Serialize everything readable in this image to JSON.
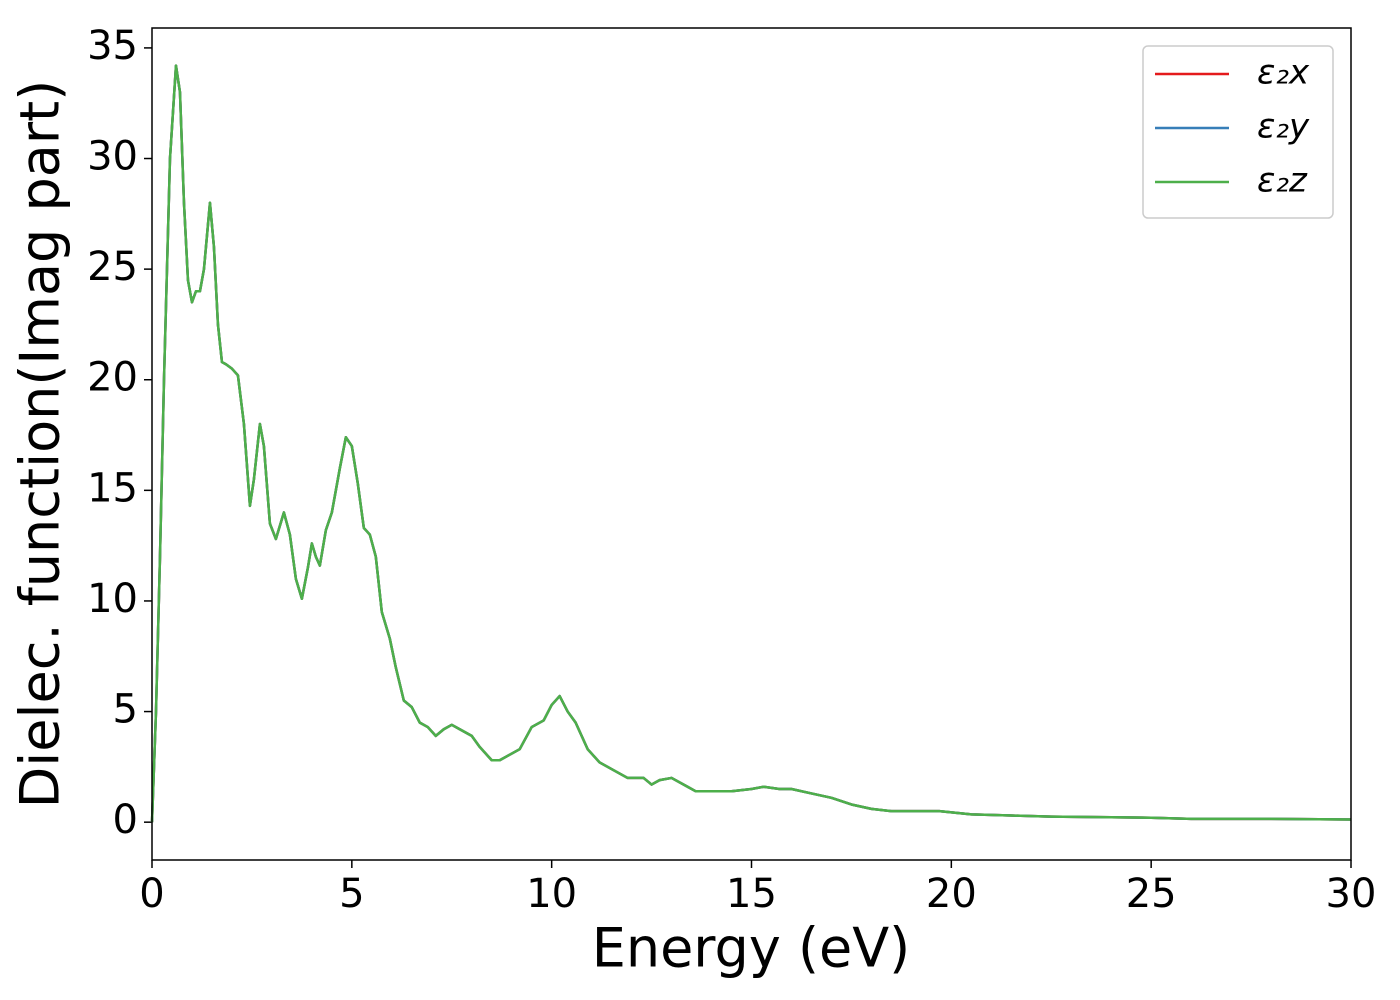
{
  "chart_data": {
    "type": "line",
    "xlabel": "Energy (eV)",
    "ylabel": "Dielec. function(Imag part)",
    "x": [
      0,
      0.1,
      0.2,
      0.3,
      0.45,
      0.6,
      0.7,
      0.8,
      0.9,
      1.0,
      1.1,
      1.2,
      1.3,
      1.45,
      1.55,
      1.65,
      1.75,
      1.85,
      2.0,
      2.15,
      2.3,
      2.45,
      2.55,
      2.7,
      2.8,
      2.95,
      3.1,
      3.3,
      3.45,
      3.6,
      3.75,
      3.9,
      4.0,
      4.1,
      4.2,
      4.35,
      4.5,
      4.7,
      4.85,
      5.0,
      5.15,
      5.3,
      5.45,
      5.6,
      5.75,
      5.95,
      6.1,
      6.3,
      6.5,
      6.7,
      6.9,
      7.1,
      7.3,
      7.5,
      7.7,
      8.0,
      8.2,
      8.5,
      8.7,
      8.9,
      9.2,
      9.5,
      9.8,
      10.0,
      10.2,
      10.4,
      10.6,
      10.9,
      11.2,
      11.6,
      11.9,
      12.3,
      12.5,
      12.7,
      13.0,
      13.4,
      13.6,
      14.0,
      14.5,
      15.0,
      15.3,
      15.7,
      16.0,
      16.5,
      17.0,
      17.5,
      18.0,
      18.5,
      19.0,
      19.7,
      20.5,
      21.5,
      22.5,
      24.0,
      25.0,
      26.0,
      28.0,
      30.0
    ],
    "series": [
      {
        "name": "ε₂x",
        "color": "#e41a1c",
        "values": [
          0,
          5,
          12,
          20,
          30,
          34.2,
          33,
          28,
          24.5,
          23.5,
          24,
          24,
          25,
          28,
          26,
          22.5,
          20.8,
          20.7,
          20.5,
          20.2,
          18,
          14.3,
          15.5,
          18,
          17,
          13.5,
          12.8,
          14,
          13,
          11,
          10.1,
          11.5,
          12.6,
          12,
          11.6,
          13.2,
          14,
          16,
          17.4,
          17,
          15.3,
          13.3,
          13,
          12,
          9.5,
          8.3,
          7,
          5.5,
          5.2,
          4.5,
          4.3,
          3.9,
          4.2,
          4.4,
          4.2,
          3.9,
          3.4,
          2.8,
          2.8,
          3.0,
          3.3,
          4.3,
          4.6,
          5.3,
          5.7,
          5.0,
          4.5,
          3.3,
          2.7,
          2.3,
          2.0,
          2.0,
          1.7,
          1.9,
          2.0,
          1.6,
          1.4,
          1.4,
          1.4,
          1.5,
          1.6,
          1.5,
          1.5,
          1.3,
          1.1,
          0.8,
          0.6,
          0.5,
          0.5,
          0.5,
          0.35,
          0.3,
          0.25,
          0.22,
          0.2,
          0.15,
          0.15,
          0.12
        ]
      },
      {
        "name": "ε₂y",
        "color": "#377eb8",
        "values": [
          0,
          5,
          12,
          20,
          30,
          34.2,
          33,
          28,
          24.5,
          23.5,
          24,
          24,
          25,
          28,
          26,
          22.5,
          20.8,
          20.7,
          20.5,
          20.2,
          18,
          14.3,
          15.5,
          18,
          17,
          13.5,
          12.8,
          14,
          13,
          11,
          10.1,
          11.5,
          12.6,
          12,
          11.6,
          13.2,
          14,
          16,
          17.4,
          17,
          15.3,
          13.3,
          13,
          12,
          9.5,
          8.3,
          7,
          5.5,
          5.2,
          4.5,
          4.3,
          3.9,
          4.2,
          4.4,
          4.2,
          3.9,
          3.4,
          2.8,
          2.8,
          3.0,
          3.3,
          4.3,
          4.6,
          5.3,
          5.7,
          5.0,
          4.5,
          3.3,
          2.7,
          2.3,
          2.0,
          2.0,
          1.7,
          1.9,
          2.0,
          1.6,
          1.4,
          1.4,
          1.4,
          1.5,
          1.6,
          1.5,
          1.5,
          1.3,
          1.1,
          0.8,
          0.6,
          0.5,
          0.5,
          0.5,
          0.35,
          0.3,
          0.25,
          0.22,
          0.2,
          0.15,
          0.15,
          0.12
        ]
      },
      {
        "name": "ε₂z",
        "color": "#4daf4a",
        "values": [
          0,
          5,
          12,
          20,
          30,
          34.2,
          33,
          28,
          24.5,
          23.5,
          24,
          24,
          25,
          28,
          26,
          22.5,
          20.8,
          20.7,
          20.5,
          20.2,
          18,
          14.3,
          15.5,
          18,
          17,
          13.5,
          12.8,
          14,
          13,
          11,
          10.1,
          11.5,
          12.6,
          12,
          11.6,
          13.2,
          14,
          16,
          17.4,
          17,
          15.3,
          13.3,
          13,
          12,
          9.5,
          8.3,
          7,
          5.5,
          5.2,
          4.5,
          4.3,
          3.9,
          4.2,
          4.4,
          4.2,
          3.9,
          3.4,
          2.8,
          2.8,
          3.0,
          3.3,
          4.3,
          4.6,
          5.3,
          5.7,
          5.0,
          4.5,
          3.3,
          2.7,
          2.3,
          2.0,
          2.0,
          1.7,
          1.9,
          2.0,
          1.6,
          1.4,
          1.4,
          1.4,
          1.5,
          1.6,
          1.5,
          1.5,
          1.3,
          1.1,
          0.8,
          0.6,
          0.5,
          0.5,
          0.5,
          0.35,
          0.3,
          0.25,
          0.22,
          0.2,
          0.15,
          0.15,
          0.12
        ]
      }
    ],
    "xlim": [
      0,
      30
    ],
    "xticks": [
      0,
      5,
      10,
      15,
      20,
      25,
      30
    ],
    "ylim": [
      -1.71,
      35.9
    ],
    "yticks": [
      0,
      5,
      10,
      15,
      20,
      25,
      30,
      35
    ],
    "grid": false,
    "legend": "upper right"
  }
}
